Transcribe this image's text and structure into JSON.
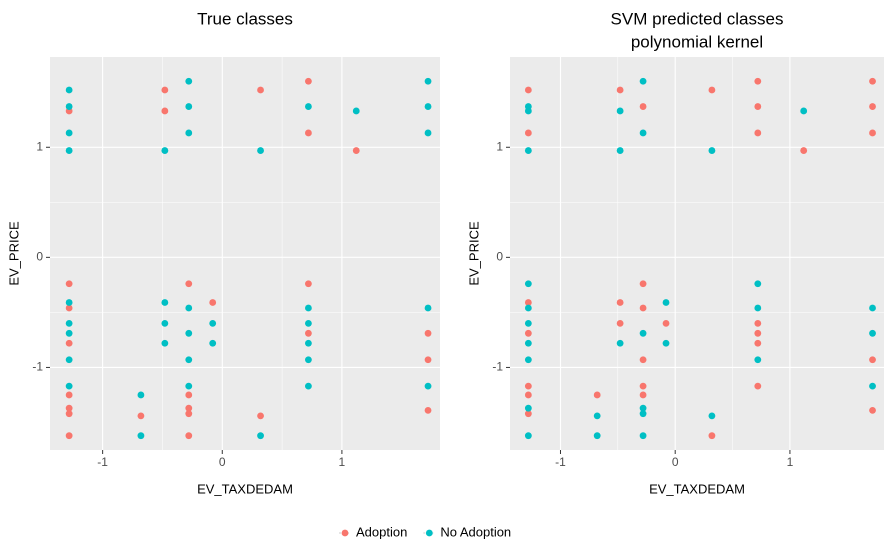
{
  "chart_data": [
    {
      "type": "scatter",
      "title": "True classes",
      "xlabel": "EV_TAXDEDAM",
      "ylabel": "EV_PRICE",
      "xlim": [
        -1.44,
        1.82
      ],
      "ylim": [
        -1.75,
        1.82
      ],
      "xticks": [
        -1,
        0,
        1
      ],
      "yticks": [
        -1,
        0,
        1
      ],
      "grid": true,
      "legend": "bottom",
      "series": [
        {
          "name": "Adoption",
          "color": "#F8766D",
          "x": [
            -1.28,
            -1.28,
            -1.28,
            -1.28,
            -1.28,
            -1.28,
            -1.28,
            -1.28,
            -0.68,
            -0.48,
            -0.48,
            -0.28,
            -0.28,
            -0.28,
            -0.28,
            -0.28,
            -0.08,
            0.32,
            0.32,
            0.72,
            0.72,
            0.72,
            0.72,
            1.12,
            1.72,
            1.72,
            1.72
          ],
          "y": [
            1.33,
            -0.24,
            -0.46,
            -0.78,
            -1.25,
            -1.37,
            -1.42,
            -1.62,
            -1.44,
            1.52,
            1.33,
            -0.24,
            -1.25,
            -1.37,
            -1.42,
            -1.62,
            -0.41,
            1.52,
            -1.44,
            1.6,
            1.13,
            -0.24,
            -0.69,
            0.97,
            -0.69,
            -0.93,
            -1.39
          ]
        },
        {
          "name": "No Adoption",
          "color": "#00BFC4",
          "x": [
            -1.28,
            -1.28,
            -1.28,
            -1.28,
            -1.28,
            -1.28,
            -1.28,
            -1.28,
            -1.28,
            -0.68,
            -0.68,
            -0.48,
            -0.48,
            -0.48,
            -0.48,
            -0.28,
            -0.28,
            -0.28,
            -0.28,
            -0.28,
            -0.28,
            -0.28,
            -0.08,
            -0.08,
            0.32,
            0.32,
            0.72,
            0.72,
            0.72,
            0.72,
            0.72,
            0.72,
            1.12,
            1.72,
            1.72,
            1.72,
            1.72,
            1.72
          ],
          "y": [
            1.52,
            1.37,
            1.13,
            0.97,
            -0.41,
            -0.6,
            -0.69,
            -0.93,
            -1.17,
            -1.25,
            -1.62,
            0.97,
            -0.41,
            -0.6,
            -0.78,
            1.6,
            1.37,
            1.13,
            -0.46,
            -0.69,
            -0.93,
            -1.17,
            -0.6,
            -0.78,
            0.97,
            -1.62,
            1.37,
            -0.46,
            -0.6,
            -0.78,
            -0.93,
            -1.17,
            1.33,
            1.6,
            1.37,
            1.13,
            -0.46,
            -1.17
          ]
        }
      ]
    },
    {
      "type": "scatter",
      "title": "SVM predicted classes",
      "subtitle": "polynomial kernel",
      "xlabel": "EV_TAXDEDAM",
      "ylabel": "EV_PRICE",
      "xlim": [
        -1.44,
        1.82
      ],
      "ylim": [
        -1.75,
        1.82
      ],
      "xticks": [
        -1,
        0,
        1
      ],
      "yticks": [
        -1,
        0,
        1
      ],
      "grid": true,
      "series": [
        {
          "color": "#F8766D",
          "x": [
            -1.28,
            -1.28,
            -1.28,
            -1.28,
            -1.28,
            -1.28,
            -1.28,
            -0.68,
            -0.48,
            -0.48,
            -0.48,
            -0.28,
            -0.28,
            -0.28,
            -0.28,
            -0.28,
            -0.28,
            -0.08,
            0.32,
            0.32,
            0.72,
            0.72,
            0.72,
            0.72,
            0.72,
            0.72,
            0.72,
            1.12,
            1.72,
            1.72,
            1.72,
            1.72,
            1.72
          ],
          "y": [
            1.52,
            1.13,
            -0.41,
            -0.69,
            -1.17,
            -1.25,
            -1.42,
            -1.25,
            1.52,
            -0.41,
            -0.6,
            1.37,
            -0.24,
            -0.46,
            -0.93,
            -1.17,
            -1.25,
            -0.6,
            1.52,
            -1.62,
            1.6,
            1.37,
            1.13,
            -0.6,
            -0.69,
            -0.78,
            -1.17,
            0.97,
            1.6,
            1.37,
            1.13,
            -0.93,
            -1.39
          ]
        },
        {
          "color": "#00BFC4",
          "x": [
            -1.28,
            -1.28,
            -1.28,
            -1.28,
            -1.28,
            -1.28,
            -1.28,
            -1.28,
            -1.28,
            -1.28,
            -0.68,
            -0.68,
            -0.48,
            -0.48,
            -0.48,
            -0.28,
            -0.28,
            -0.28,
            -0.28,
            -0.28,
            -0.28,
            -0.08,
            -0.08,
            0.32,
            0.32,
            0.72,
            0.72,
            0.72,
            1.12,
            1.72,
            1.72,
            1.72
          ],
          "y": [
            1.37,
            1.33,
            0.97,
            -0.24,
            -0.46,
            -0.6,
            -0.78,
            -0.93,
            -1.37,
            -1.62,
            -1.44,
            -1.62,
            1.33,
            0.97,
            -0.78,
            1.6,
            1.13,
            -0.69,
            -1.37,
            -1.42,
            -1.62,
            -0.41,
            -0.78,
            0.97,
            -1.44,
            -0.24,
            -0.46,
            -0.93,
            1.33,
            -0.46,
            -0.69,
            -1.17
          ]
        }
      ]
    }
  ]
}
